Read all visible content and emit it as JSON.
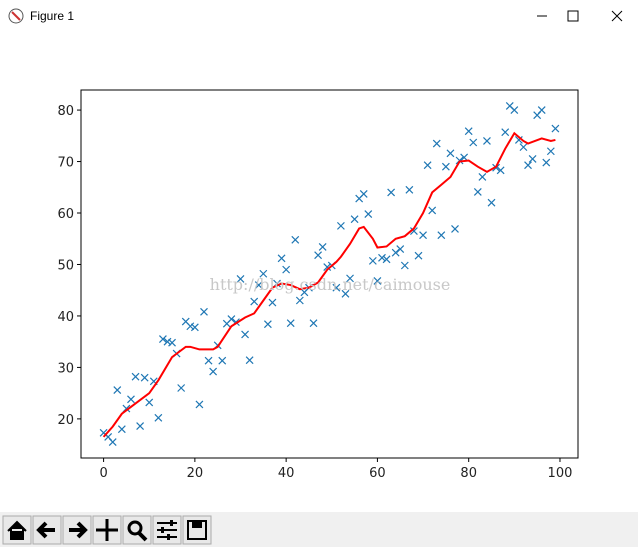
{
  "window": {
    "title": "Figure 1"
  },
  "chart_data": {
    "type": "scatter",
    "watermark": "http://blog.csdn.net/caimouse",
    "xlim": [
      -4.95,
      103.95
    ],
    "ylim": [
      12.4,
      83.9
    ],
    "xticks": [
      0,
      20,
      40,
      60,
      80,
      100
    ],
    "yticks": [
      20,
      30,
      40,
      50,
      60,
      70,
      80
    ],
    "grid": false,
    "series": [
      {
        "type": "scatter",
        "color": "#1f77b4",
        "marker": "x",
        "x": [
          0,
          1,
          2,
          3,
          4,
          5,
          6,
          7,
          8,
          9,
          10,
          11,
          12,
          13,
          14,
          15,
          16,
          17,
          18,
          19,
          20,
          21,
          22,
          23,
          24,
          25,
          26,
          27,
          28,
          29,
          30,
          31,
          32,
          33,
          34,
          35,
          36,
          37,
          38,
          39,
          40,
          41,
          42,
          43,
          44,
          45,
          46,
          47,
          48,
          49,
          50,
          51,
          52,
          53,
          54,
          55,
          56,
          57,
          58,
          59,
          60,
          61,
          62,
          63,
          64,
          65,
          66,
          67,
          68,
          69,
          70,
          71,
          72,
          73,
          74,
          75,
          76,
          77,
          78,
          79,
          80,
          81,
          82,
          83,
          84,
          85,
          86,
          87,
          88,
          89,
          90,
          91,
          92,
          93,
          94,
          95,
          96,
          97,
          98,
          99
        ],
        "values": [
          17.3,
          16.5,
          15.5,
          25.6,
          18,
          22,
          23.8,
          28.2,
          18.6,
          28,
          23.2,
          27.3,
          20.2,
          35.5,
          35,
          34.8,
          32.7,
          26,
          38.9,
          38,
          37.8,
          22.8,
          40.8,
          31.3,
          29.2,
          34.3,
          31.3,
          38.5,
          39.4,
          38.8,
          47.2,
          36.4,
          31.4,
          42.8,
          46,
          48.2,
          38.4,
          42.6,
          46.3,
          51.2,
          49,
          38.6,
          54.8,
          43,
          44.6,
          45.5,
          38.6,
          51.8,
          53.4,
          49.5,
          49.8,
          45.5,
          57.5,
          44.3,
          47.3,
          58.8,
          62.8,
          63.7,
          59.8,
          50.7,
          46.8,
          51.3,
          51,
          64,
          52.3,
          53,
          49.8,
          64.5,
          56.5,
          51.7,
          55.7,
          69.3,
          60.5,
          73.5,
          55.7,
          69,
          71.6,
          56.9,
          70.2,
          70.8,
          75.9,
          73.7,
          64.1,
          67,
          74,
          62,
          68.8,
          68.3,
          75.7,
          80.8,
          80,
          74.2,
          72.8,
          69.3,
          70.5,
          79,
          80,
          69.8,
          72,
          76.4
        ]
      },
      {
        "type": "line",
        "color": "#ff0000",
        "x": [
          0,
          2,
          4,
          7,
          10,
          12,
          15,
          18,
          19,
          21,
          24,
          25,
          28,
          31,
          33,
          35,
          37,
          39,
          41,
          43,
          45,
          47,
          49,
          51,
          52,
          54,
          56,
          57,
          59,
          60,
          62,
          64,
          66,
          68,
          70,
          72,
          74,
          76,
          78,
          80,
          82,
          84,
          86,
          88,
          90,
          92,
          93,
          96,
          98,
          99
        ],
        "values": [
          16.5,
          18.5,
          21,
          23,
          25,
          27.5,
          32,
          34,
          34,
          33.5,
          33.5,
          34,
          38,
          39.7,
          40.5,
          43,
          45.5,
          46.3,
          46,
          45.2,
          45.5,
          46.5,
          49,
          50.5,
          51.5,
          54,
          57,
          57.3,
          55,
          53.3,
          53.5,
          55,
          55.5,
          57,
          60,
          64,
          65.5,
          67,
          70,
          70.2,
          69,
          68,
          69,
          72.5,
          75.5,
          74,
          73.5,
          74.5,
          74,
          74.2
        ]
      }
    ]
  }
}
